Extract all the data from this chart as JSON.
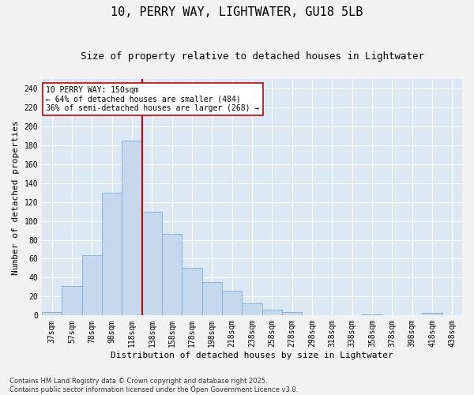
{
  "title1": "10, PERRY WAY, LIGHTWATER, GU18 5LB",
  "title2": "Size of property relative to detached houses in Lightwater",
  "xlabel": "Distribution of detached houses by size in Lightwater",
  "ylabel": "Number of detached properties",
  "categories": [
    "37sqm",
    "57sqm",
    "78sqm",
    "98sqm",
    "118sqm",
    "138sqm",
    "158sqm",
    "178sqm",
    "198sqm",
    "218sqm",
    "238sqm",
    "258sqm",
    "278sqm",
    "298sqm",
    "318sqm",
    "338sqm",
    "358sqm",
    "378sqm",
    "398sqm",
    "418sqm",
    "438sqm"
  ],
  "values": [
    4,
    31,
    64,
    130,
    185,
    110,
    86,
    50,
    35,
    26,
    13,
    6,
    4,
    0,
    0,
    0,
    1,
    0,
    0,
    3,
    0
  ],
  "bar_color": "#c5d8ee",
  "bar_edge_color": "#7aadd4",
  "background_color": "#dce9f5",
  "fig_background": "#f2f2f2",
  "vline_x": 4.5,
  "vline_color": "#cc0000",
  "annotation_text": "10 PERRY WAY: 150sqm\n← 64% of detached houses are smaller (484)\n36% of semi-detached houses are larger (268) →",
  "annotation_box_color": "#ffffff",
  "annotation_box_edge": "#cc0000",
  "ylim": [
    0,
    250
  ],
  "yticks": [
    0,
    20,
    40,
    60,
    80,
    100,
    120,
    140,
    160,
    180,
    200,
    220,
    240
  ],
  "footer1": "Contains HM Land Registry data © Crown copyright and database right 2025.",
  "footer2": "Contains public sector information licensed under the Open Government Licence v3.0.",
  "title_fontsize": 11,
  "subtitle_fontsize": 9,
  "label_fontsize": 8,
  "tick_fontsize": 7,
  "annotation_fontsize": 7,
  "footer_fontsize": 6
}
